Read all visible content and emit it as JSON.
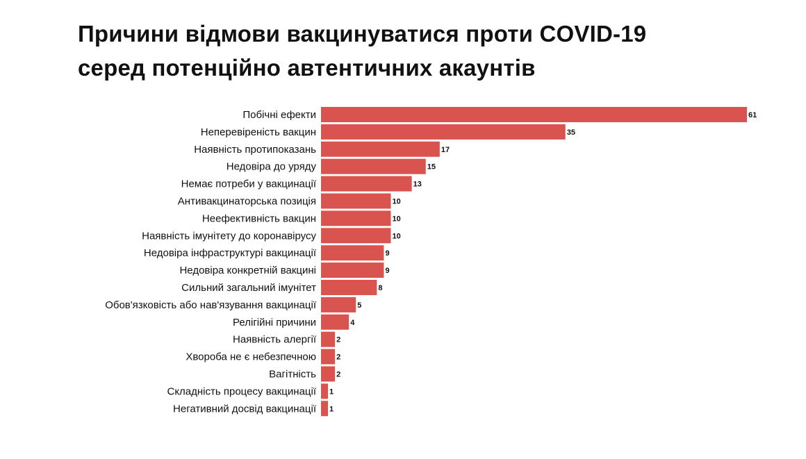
{
  "chart_data": {
    "type": "bar",
    "orientation": "horizontal",
    "title_lines": [
      "Причини відмови вакцинуватися проти COVID-19",
      "серед потенційно автентичних акаунтів"
    ],
    "categories": [
      "Побічні ефекти",
      "Неперевіреність вакцин",
      "Наявність протипоказань",
      "Недовіра до уряду",
      "Немає потреби у вакцинації",
      "Антивакцинаторська позиція",
      "Неефективність вакцин",
      "Наявність імунітету до коронавірусу",
      "Недовіра інфраструктурі вакцинації",
      "Недовіра конкретній вакцині",
      "Сильний загальний імунітет",
      "Обов'язковість або нав'язування вакцинації",
      "Релігійні причини",
      "Наявність алергії",
      "Хвороба не є небезпечною",
      "Вагітність",
      "Складність процесу вакцинації",
      "Негативний досвід вакцинації"
    ],
    "values": [
      61,
      35,
      17,
      15,
      13,
      10,
      10,
      10,
      9,
      9,
      8,
      5,
      4,
      2,
      2,
      2,
      1,
      1
    ],
    "xlim": [
      0,
      61
    ],
    "bar_color": "#d9534f",
    "grid": false,
    "legend": "none",
    "xlabel": "",
    "ylabel": ""
  }
}
